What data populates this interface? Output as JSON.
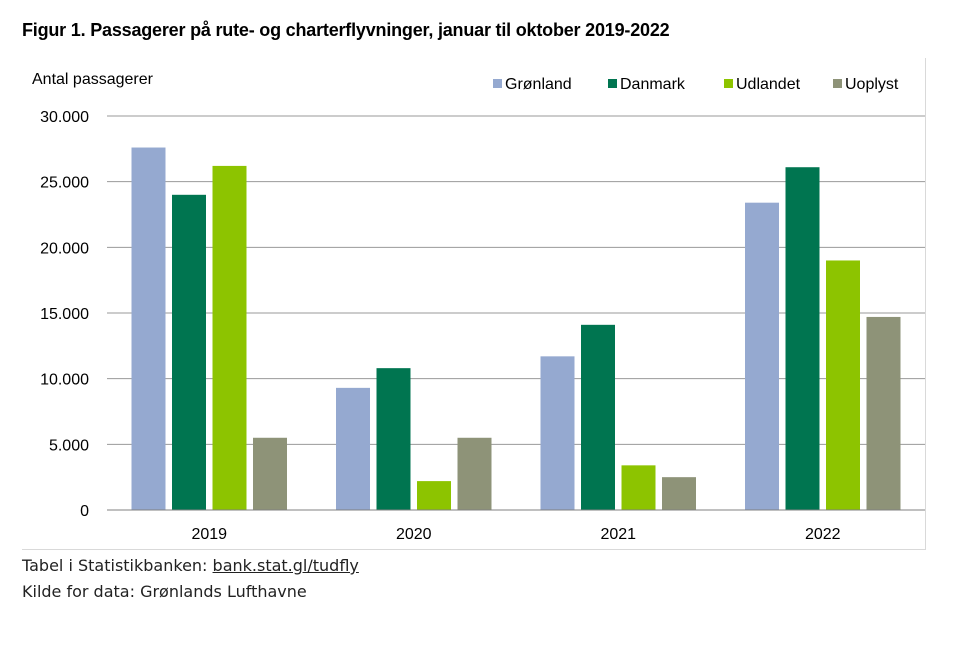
{
  "chart_data": {
    "type": "bar",
    "title": "Figur 1. Passagerer på rute- og charterflyvninger, januar til oktober 2019-2022",
    "ylabel": "Antal passagerer",
    "xlabel": "",
    "ylim": [
      0,
      30000
    ],
    "yticks": [
      0,
      5000,
      10000,
      15000,
      20000,
      25000,
      30000
    ],
    "ytick_labels": [
      "0",
      "5.000",
      "10.000",
      "15.000",
      "20.000",
      "25.000",
      "30.000"
    ],
    "categories": [
      "2019",
      "2020",
      "2021",
      "2022"
    ],
    "grid": true,
    "legend_position": "top-right",
    "series": [
      {
        "name": "Grønland",
        "color": "#95a9d0",
        "values": [
          27600,
          9300,
          11700,
          23400
        ]
      },
      {
        "name": "Danmark",
        "color": "#007550",
        "values": [
          24000,
          10800,
          14100,
          26100
        ]
      },
      {
        "name": "Udlandet",
        "color": "#8dc400",
        "values": [
          26200,
          2200,
          3400,
          19000
        ]
      },
      {
        "name": "Uoplyst",
        "color": "#8e9378",
        "values": [
          5500,
          5500,
          2500,
          14700
        ]
      }
    ]
  },
  "footer": {
    "table_prefix": "Tabel i Statistikbanken: ",
    "table_link": "bank.stat.gl/tudfly",
    "source": "Kilde for data: Grønlands Lufthavne"
  }
}
